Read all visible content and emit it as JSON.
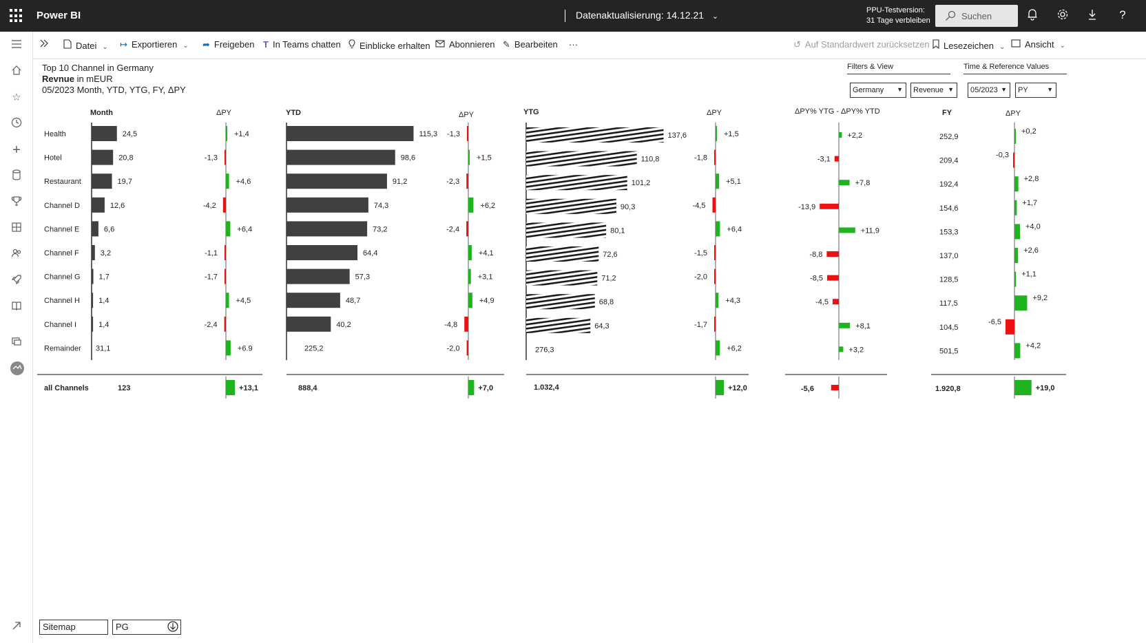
{
  "topbar": {
    "app_name": "Power BI",
    "refresh": "Datenaktualisierung: 14.12.21",
    "trial_line1": "PPU-Testversion:",
    "trial_line2": "31 Tage verbleiben",
    "search_placeholder": "Suchen"
  },
  "toolbar": {
    "file": "Datei",
    "export": "Exportieren",
    "share": "Freigeben",
    "teams": "In Teams chatten",
    "insights": "Einblicke erhalten",
    "subscribe": "Abonnieren",
    "edit": "Bearbeiten",
    "more": "···",
    "reset": "Auf Standardwert zurücksetzen",
    "bookmarks": "Lesezeichen",
    "view": "Ansicht"
  },
  "report": {
    "title_line1": "Top 10 Channel in Germany",
    "title_line2_bold": "Revnue",
    "title_line2_rest": " in mEUR",
    "title_line3": "05/2023 Month, YTD, YTG, FY, ΔPY",
    "filters_label": "Filters & View",
    "time_label": "Time & Reference Values",
    "filter_country": "Germany",
    "filter_measure": "Revenue",
    "filter_period": "05/2023",
    "filter_reference": "PY"
  },
  "pages": {
    "sitemap": "Sitemap",
    "current": "PG"
  },
  "colors": {
    "bar": "#404040",
    "positive": "#1fb31f",
    "negative": "#ee1111"
  },
  "chart_data": {
    "type": "bar",
    "categories": [
      "Health",
      "Hotel",
      "Restaurant",
      "Channel D",
      "Channel E",
      "Channel F",
      "Channel G",
      "Channel H",
      "Channel I",
      "Remainder"
    ],
    "total_label": "all Channels",
    "headers": {
      "month": "Month",
      "dpy": "ΔPY",
      "ytd": "YTD",
      "ytg": "YTG",
      "dpct": "ΔPY% YTG - ΔPY% YTD",
      "fy": "FY"
    },
    "series": [
      {
        "name": "Month",
        "values": [
          24.5,
          20.8,
          19.7,
          12.6,
          6.6,
          3.2,
          1.7,
          1.4,
          1.4,
          31.1
        ],
        "labels": [
          "24,5",
          "20,8",
          "19,7",
          "12,6",
          "6,6",
          "3,2",
          "1,7",
          "1,4",
          "1,4",
          "31,1"
        ],
        "total": "123"
      },
      {
        "name": "Month ΔPY",
        "values": [
          1.4,
          -1.3,
          4.6,
          -4.2,
          6.4,
          -1.1,
          -1.7,
          4.5,
          -2.4,
          6.9
        ],
        "labels": [
          "+1,4",
          "-1,3",
          "+4,6",
          "-4,2",
          "+6,4",
          "-1,1",
          "-1,7",
          "+4,5",
          "-2,4",
          "+6.9"
        ],
        "total": 13.1,
        "total_label": "+13,1"
      },
      {
        "name": "YTD",
        "values": [
          115.3,
          98.6,
          91.2,
          74.3,
          73.2,
          64.4,
          57.3,
          48.7,
          40.2,
          225.2
        ],
        "labels": [
          "115,3",
          "98,6",
          "91,2",
          "74,3",
          "73,2",
          "64,4",
          "57,3",
          "48,7",
          "40,2",
          "225,2"
        ],
        "total": "888,4"
      },
      {
        "name": "YTD ΔPY",
        "values": [
          -1.3,
          1.5,
          -2.3,
          6.2,
          -2.4,
          4.1,
          3.1,
          4.9,
          -4.8,
          -2.0
        ],
        "labels": [
          "-1,3",
          "+1,5",
          "-2,3",
          "+6,2",
          "-2,4",
          "+4,1",
          "+3,1",
          "+4,9",
          "-4,8",
          "-2,0"
        ],
        "total": 7.0,
        "total_label": "+7,0"
      },
      {
        "name": "YTG",
        "values": [
          137.6,
          110.8,
          101.2,
          90.3,
          80.1,
          72.6,
          71.2,
          68.8,
          64.3,
          276.3
        ],
        "labels": [
          "137,6",
          "110,8",
          "101,2",
          "90,3",
          "80,1",
          "72,6",
          "71,2",
          "68,8",
          "64,3",
          "276,3"
        ],
        "total": "1.032,4"
      },
      {
        "name": "YTG ΔPY",
        "values": [
          1.5,
          -1.8,
          5.1,
          -4.5,
          6.4,
          -1.5,
          -2.0,
          4.3,
          -1.7,
          6.2
        ],
        "labels": [
          "+1,5",
          "-1,8",
          "+5,1",
          "-4,5",
          "+6,4",
          "-1,5",
          "-2,0",
          "+4,3",
          "-1,7",
          "+6,2"
        ],
        "total": 12.0,
        "total_label": "+12,0"
      },
      {
        "name": "ΔPY% YTG - ΔPY% YTD",
        "values": [
          2.2,
          -3.1,
          7.8,
          -13.9,
          11.9,
          -8.8,
          -8.5,
          -4.5,
          8.1,
          3.2
        ],
        "labels": [
          "+2,2",
          "-3,1",
          "+7,8",
          "-13,9",
          "+11,9",
          "-8,8",
          "-8,5",
          "-4,5",
          "+8,1",
          "+3,2"
        ],
        "total": -5.6,
        "total_label": "-5,6"
      },
      {
        "name": "FY",
        "values": [
          252.9,
          209.4,
          192.4,
          154.6,
          153.3,
          137.0,
          128.5,
          117.5,
          104.5,
          501.5
        ],
        "labels": [
          "252,9",
          "209,4",
          "192,4",
          "154,6",
          "153,3",
          "137,0",
          "128,5",
          "117,5",
          "104,5",
          "501,5"
        ],
        "total": "1.920,8"
      },
      {
        "name": "FY ΔPY",
        "values": [
          0.2,
          -0.3,
          2.8,
          1.7,
          4.0,
          2.6,
          1.1,
          9.2,
          -6.5,
          4.2
        ],
        "labels": [
          "+0,2",
          "-0,3",
          "+2,8",
          "+1,7",
          "+4,0",
          "+2,6",
          "+1,1",
          "+9,2",
          "-6,5",
          "+4,2"
        ],
        "total": 19.0,
        "total_label": "+19,0"
      }
    ]
  }
}
